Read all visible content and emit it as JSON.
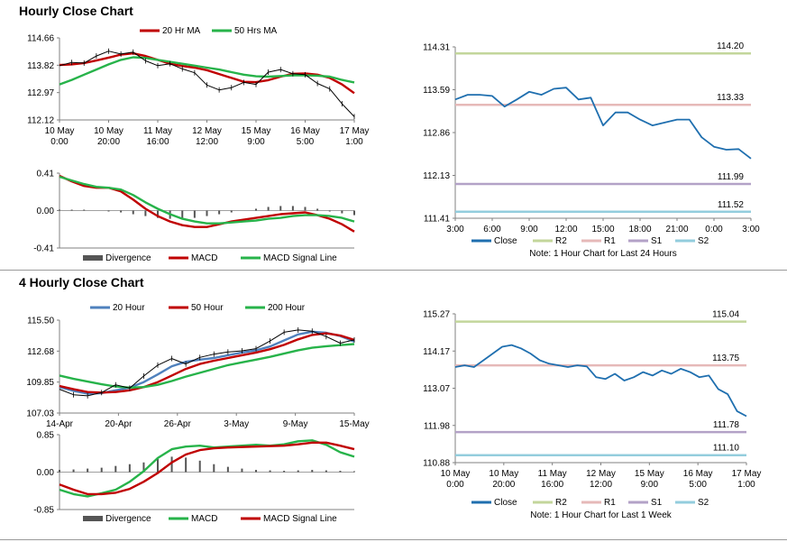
{
  "sections": [
    {
      "title": "Hourly Close Chart"
    },
    {
      "title": "4 Hourly Close Chart"
    }
  ],
  "chart_data": [
    {
      "id": "hourly-price",
      "type": "line",
      "ylim": [
        112.12,
        114.66
      ],
      "yticks": [
        "114.66",
        "113.82",
        "112.97",
        "112.12"
      ],
      "xticks": [
        "10 May\n0:00",
        "10 May\n20:00",
        "11 May\n16:00",
        "12 May\n12:00",
        "15 May\n9:00",
        "16 May\n5:00",
        "17 May\n1:00"
      ],
      "legend": [
        "20 Hr MA",
        "50 Hrs MA"
      ],
      "series": [
        {
          "name": "20 Hr MA",
          "color": "#c00000",
          "values": [
            113.82,
            113.84,
            113.88,
            113.96,
            114.05,
            114.14,
            114.18,
            114.1,
            113.98,
            113.86,
            113.79,
            113.74,
            113.66,
            113.54,
            113.42,
            113.3,
            113.29,
            113.35,
            113.46,
            113.55,
            113.56,
            113.52,
            113.42,
            113.22,
            112.95
          ]
        },
        {
          "name": "50 Hrs MA",
          "color": "#27b34a",
          "values": [
            113.22,
            113.36,
            113.52,
            113.68,
            113.84,
            113.98,
            114.06,
            114.04,
            113.98,
            113.92,
            113.86,
            113.8,
            113.74,
            113.68,
            113.6,
            113.52,
            113.47,
            113.46,
            113.48,
            113.5,
            113.5,
            113.49,
            113.46,
            113.36,
            113.28
          ]
        },
        {
          "name": "Price",
          "color": "#000000",
          "values": [
            113.8,
            113.9,
            113.88,
            114.1,
            114.25,
            114.16,
            114.22,
            113.95,
            113.8,
            113.86,
            113.7,
            113.58,
            113.2,
            113.05,
            113.12,
            113.28,
            113.22,
            113.6,
            113.68,
            113.55,
            113.52,
            113.25,
            113.08,
            112.62,
            112.22
          ]
        }
      ]
    },
    {
      "id": "hourly-macd",
      "type": "line",
      "ylim": [
        -0.41,
        0.41
      ],
      "yticks": [
        "0.41",
        "0.00",
        "-0.41"
      ],
      "legend": [
        "Divergence",
        "MACD",
        "MACD Signal Line"
      ],
      "divergence": [
        0.01,
        0.01,
        0.01,
        0.0,
        -0.01,
        -0.02,
        -0.04,
        -0.06,
        -0.08,
        -0.09,
        -0.09,
        -0.08,
        -0.06,
        -0.04,
        -0.02,
        0.0,
        0.02,
        0.04,
        0.05,
        0.05,
        0.04,
        0.02,
        -0.01,
        -0.03,
        -0.05
      ],
      "series": [
        {
          "name": "MACD",
          "color": "#c00000",
          "values": [
            0.38,
            0.32,
            0.27,
            0.25,
            0.25,
            0.21,
            0.12,
            0.02,
            -0.06,
            -0.12,
            -0.16,
            -0.18,
            -0.18,
            -0.15,
            -0.12,
            -0.1,
            -0.08,
            -0.06,
            -0.04,
            -0.03,
            -0.02,
            -0.05,
            -0.09,
            -0.15,
            -0.23
          ]
        },
        {
          "name": "MACD Signal Line",
          "color": "#27b34a",
          "values": [
            0.37,
            0.33,
            0.29,
            0.26,
            0.25,
            0.23,
            0.17,
            0.09,
            0.02,
            -0.04,
            -0.09,
            -0.12,
            -0.14,
            -0.14,
            -0.13,
            -0.12,
            -0.11,
            -0.09,
            -0.08,
            -0.06,
            -0.05,
            -0.05,
            -0.06,
            -0.08,
            -0.12
          ]
        }
      ]
    },
    {
      "id": "hourly-24h",
      "type": "line",
      "ylim": [
        111.41,
        114.31
      ],
      "yticks": [
        "114.31",
        "113.59",
        "112.86",
        "112.13",
        "111.41"
      ],
      "xticks": [
        "3:00",
        "6:00",
        "9:00",
        "12:00",
        "15:00",
        "18:00",
        "21:00",
        "0:00",
        "3:00"
      ],
      "legend": [
        "Close",
        "R2",
        "R1",
        "S1",
        "S2"
      ],
      "note": "Note: 1 Hour Chart for Last 24 Hours",
      "levels": [
        {
          "name": "R2",
          "value": 114.2,
          "label": "114.20",
          "color": "#c3d69b"
        },
        {
          "name": "R1",
          "value": 113.33,
          "label": "113.33",
          "color": "#e6b9b8"
        },
        {
          "name": "S1",
          "value": 111.99,
          "label": "111.99",
          "color": "#b3a2c7"
        },
        {
          "name": "S2",
          "value": 111.52,
          "label": "111.52",
          "color": "#93cddd"
        }
      ],
      "series": [
        {
          "name": "Close",
          "color": "#1f6faf",
          "values": [
            113.42,
            113.5,
            113.5,
            113.48,
            113.3,
            113.42,
            113.55,
            113.5,
            113.6,
            113.62,
            113.42,
            113.45,
            112.98,
            113.2,
            113.2,
            113.08,
            112.98,
            113.03,
            113.08,
            113.08,
            112.78,
            112.62,
            112.57,
            112.58,
            112.42
          ]
        }
      ]
    },
    {
      "id": "four-hourly-price",
      "type": "line",
      "ylim": [
        107.03,
        115.5
      ],
      "yticks": [
        "115.50",
        "112.68",
        "109.85",
        "107.03"
      ],
      "xticks": [
        "14-Apr",
        "20-Apr",
        "26-Apr",
        "3-May",
        "9-May",
        "15-May"
      ],
      "legend": [
        "20 Hour",
        "50 Hour",
        "200 Hour"
      ],
      "series": [
        {
          "name": "20 Hour",
          "color": "#4f81bd",
          "values": [
            109.4,
            109.05,
            108.8,
            108.85,
            109.1,
            109.35,
            109.85,
            110.55,
            111.3,
            111.7,
            111.9,
            112.05,
            112.3,
            112.55,
            112.75,
            113.1,
            113.65,
            114.2,
            114.45,
            114.35,
            114.05,
            113.55
          ]
        },
        {
          "name": "50 Hour",
          "color": "#c00000",
          "values": [
            109.5,
            109.2,
            108.95,
            108.9,
            108.95,
            109.1,
            109.4,
            109.85,
            110.45,
            111.05,
            111.5,
            111.8,
            112.05,
            112.3,
            112.55,
            112.85,
            113.25,
            113.75,
            114.15,
            114.3,
            114.1,
            113.7
          ]
        },
        {
          "name": "200 Hour",
          "color": "#27b34a",
          "values": [
            110.45,
            110.15,
            109.9,
            109.65,
            109.45,
            109.35,
            109.4,
            109.6,
            109.95,
            110.35,
            110.7,
            111.05,
            111.4,
            111.65,
            111.9,
            112.15,
            112.45,
            112.75,
            112.98,
            113.12,
            113.22,
            113.32
          ]
        },
        {
          "name": "Price",
          "color": "#000000",
          "values": [
            109.2,
            108.7,
            108.6,
            108.9,
            109.6,
            109.3,
            110.4,
            111.4,
            112.0,
            111.5,
            112.1,
            112.4,
            112.6,
            112.7,
            112.9,
            113.6,
            114.4,
            114.6,
            114.5,
            114.0,
            113.4,
            113.7
          ]
        }
      ]
    },
    {
      "id": "four-hourly-macd",
      "type": "line",
      "ylim": [
        -0.85,
        0.85
      ],
      "yticks": [
        "0.85",
        "0.00",
        "-0.85"
      ],
      "legend": [
        "Divergence",
        "MACD",
        "MACD Signal Line"
      ],
      "divergence": [
        0.05,
        0.06,
        0.08,
        0.1,
        0.14,
        0.18,
        0.22,
        0.3,
        0.35,
        0.33,
        0.26,
        0.18,
        0.12,
        0.08,
        0.05,
        0.04,
        0.03,
        0.04,
        0.05,
        0.04,
        0.03,
        0.02
      ],
      "series": [
        {
          "name": "MACD",
          "color": "#27b34a",
          "values": [
            -0.4,
            -0.5,
            -0.55,
            -0.48,
            -0.4,
            -0.22,
            0.02,
            0.32,
            0.52,
            0.58,
            0.6,
            0.56,
            0.58,
            0.6,
            0.62,
            0.6,
            0.63,
            0.7,
            0.72,
            0.62,
            0.45,
            0.35
          ]
        },
        {
          "name": "MACD Signal Line",
          "color": "#c00000",
          "values": [
            -0.28,
            -0.4,
            -0.5,
            -0.5,
            -0.47,
            -0.38,
            -0.22,
            -0.02,
            0.22,
            0.4,
            0.5,
            0.54,
            0.56,
            0.57,
            0.58,
            0.59,
            0.6,
            0.63,
            0.67,
            0.67,
            0.6,
            0.52
          ]
        }
      ]
    },
    {
      "id": "four-hourly-week",
      "type": "line",
      "ylim": [
        110.88,
        115.27
      ],
      "yticks": [
        "115.27",
        "114.17",
        "113.07",
        "111.98",
        "110.88"
      ],
      "xticks": [
        "10 May\n0:00",
        "10 May\n20:00",
        "11 May\n16:00",
        "12 May\n12:00",
        "15 May\n9:00",
        "16 May\n5:00",
        "17 May\n1:00"
      ],
      "legend": [
        "Close",
        "R2",
        "R1",
        "S1",
        "S2"
      ],
      "note": "Note: 1 Hour Chart for Last 1 Week",
      "levels": [
        {
          "name": "R2",
          "value": 115.04,
          "label": "115.04",
          "color": "#c3d69b"
        },
        {
          "name": "R1",
          "value": 113.75,
          "label": "113.75",
          "color": "#e6b9b8"
        },
        {
          "name": "S1",
          "value": 111.78,
          "label": "111.78",
          "color": "#b3a2c7"
        },
        {
          "name": "S2",
          "value": 111.1,
          "label": "111.10",
          "color": "#93cddd"
        }
      ],
      "series": [
        {
          "name": "Close",
          "color": "#1f6faf",
          "values": [
            113.7,
            113.75,
            113.7,
            113.9,
            114.1,
            114.3,
            114.35,
            114.25,
            114.1,
            113.9,
            113.8,
            113.75,
            113.7,
            113.75,
            113.72,
            113.4,
            113.35,
            113.5,
            113.3,
            113.4,
            113.55,
            113.45,
            113.6,
            113.5,
            113.65,
            113.55,
            113.4,
            113.45,
            113.05,
            112.9,
            112.4,
            112.25
          ]
        }
      ]
    }
  ]
}
